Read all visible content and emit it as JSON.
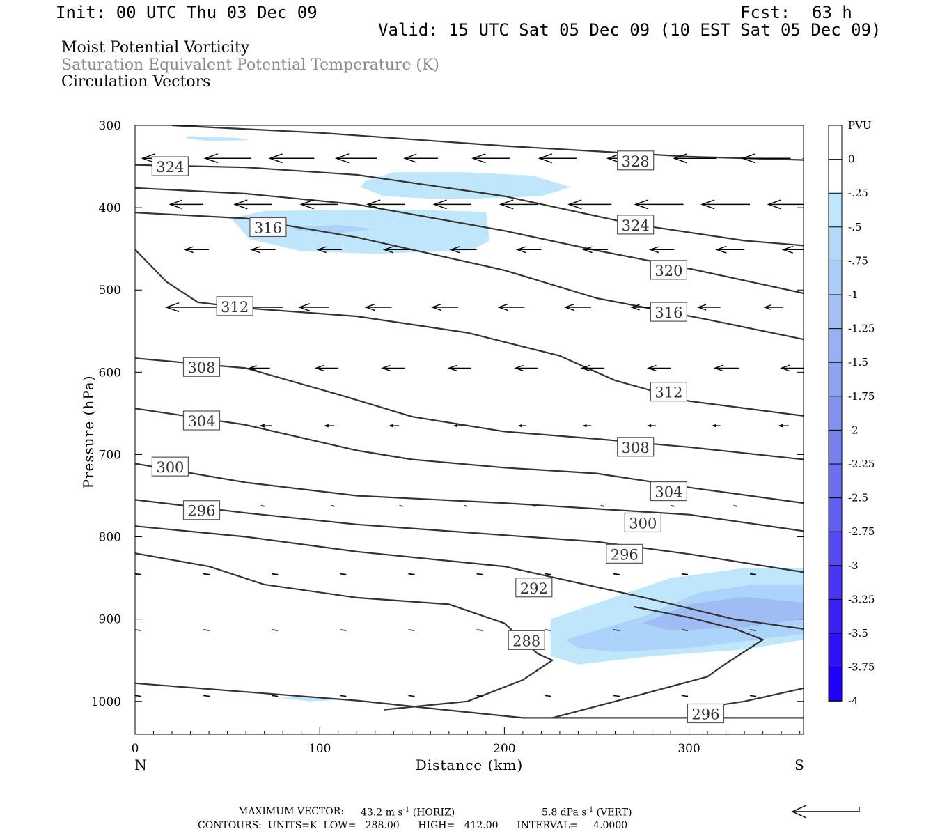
{
  "header": {
    "init": "Init: 00 UTC Thu 03 Dec 09",
    "fcst_label": "Fcst:",
    "fcst_value": "63 h",
    "valid": "Valid: 15 UTC Sat 05 Dec 09 (10 EST Sat 05 Dec 09)"
  },
  "fields": {
    "line1": "Moist Potential Vorticity",
    "line2": "Saturation Equivalent Potential Temperature (K)",
    "line3": "Circulation Vectors"
  },
  "footer": {
    "max_vector_label": "MAXIMUM VECTOR:",
    "max_vector_horiz": "43.2 m s",
    "horiz_sup": "-1",
    "horiz_tag": "(HORIZ)",
    "max_vector_vert": "5.8 dPa s",
    "vert_sup": "-1",
    "vert_tag": "(VERT)",
    "contours": "CONTOURS:  UNITS=K  LOW=   288.00      HIGH=   412.00      INTERVAL=     4.0000"
  },
  "chart_data": {
    "type": "cross-section",
    "xlabel": "Distance (km)",
    "ylabel": "Pressure (hPa)",
    "x_left_label": "N",
    "x_right_label": "S",
    "xlim": [
      0,
      362
    ],
    "ylim": [
      300,
      1040
    ],
    "y_inverted": true,
    "x_ticks": [
      0,
      100,
      200,
      300
    ],
    "y_ticks": [
      300,
      400,
      500,
      600,
      700,
      800,
      900,
      1000
    ],
    "colorbar": {
      "units": "PVU",
      "levels": [
        "0",
        "-.25",
        "-.5",
        "-.75",
        "-1",
        "-1.25",
        "-1.5",
        "-1.75",
        "-2",
        "-2.25",
        "-2.5",
        "-2.75",
        "-3",
        "-3.25",
        "-3.5",
        "-3.75",
        "-4"
      ],
      "colors": [
        "#ffffff",
        "#ffffff",
        "#bfe6fb",
        "#b3d9fa",
        "#aacdf8",
        "#a2c0f6",
        "#98b1f4",
        "#8ea2f2",
        "#8391f0",
        "#7880ee",
        "#6d6fee",
        "#615ef0",
        "#5549f2",
        "#4935f4",
        "#3c21f6",
        "#2e11f8",
        "#1f00fb"
      ]
    },
    "contour_labels": [
      {
        "text": "324",
        "x": 19,
        "p": 350
      },
      {
        "text": "328",
        "x": 271,
        "p": 343
      },
      {
        "text": "316",
        "x": 72,
        "p": 424
      },
      {
        "text": "324",
        "x": 271,
        "p": 421
      },
      {
        "text": "320",
        "x": 289,
        "p": 476
      },
      {
        "text": "312",
        "x": 54,
        "p": 520
      },
      {
        "text": "316",
        "x": 289,
        "p": 527
      },
      {
        "text": "308",
        "x": 36,
        "p": 594
      },
      {
        "text": "312",
        "x": 289,
        "p": 624
      },
      {
        "text": "304",
        "x": 36,
        "p": 659
      },
      {
        "text": "308",
        "x": 271,
        "p": 691
      },
      {
        "text": "300",
        "x": 19,
        "p": 715
      },
      {
        "text": "304",
        "x": 289,
        "p": 745
      },
      {
        "text": "296",
        "x": 36,
        "p": 768
      },
      {
        "text": "300",
        "x": 275,
        "p": 783
      },
      {
        "text": "296",
        "x": 265,
        "p": 821
      },
      {
        "text": "292",
        "x": 216,
        "p": 862
      },
      {
        "text": "288",
        "x": 212,
        "p": 926
      },
      {
        "text": "296",
        "x": 309,
        "p": 1015
      }
    ],
    "contours": [
      {
        "level": 328,
        "points": [
          [
            20,
            300
          ],
          [
            100,
            309
          ],
          [
            200,
            325
          ],
          [
            300,
            338
          ],
          [
            362,
            342
          ]
        ]
      },
      {
        "level": 324,
        "points": [
          [
            0,
            348
          ],
          [
            60,
            351
          ],
          [
            120,
            360
          ],
          [
            200,
            386
          ],
          [
            270,
            420
          ],
          [
            330,
            440
          ],
          [
            362,
            446
          ]
        ]
      },
      {
        "level": 320,
        "points": [
          [
            0,
            376
          ],
          [
            60,
            383
          ],
          [
            120,
            396
          ],
          [
            200,
            428
          ],
          [
            250,
            452
          ],
          [
            300,
            474
          ],
          [
            362,
            504
          ]
        ]
      },
      {
        "level": 316,
        "points": [
          [
            0,
            406
          ],
          [
            60,
            413
          ],
          [
            120,
            436
          ],
          [
            200,
            476
          ],
          [
            250,
            510
          ],
          [
            310,
            536
          ],
          [
            362,
            560
          ]
        ]
      },
      {
        "level": 312,
        "points": [
          [
            0,
            451
          ],
          [
            17,
            490
          ],
          [
            34,
            515
          ],
          [
            60,
            522
          ],
          [
            120,
            532
          ],
          [
            180,
            552
          ],
          [
            230,
            580
          ],
          [
            260,
            610
          ],
          [
            300,
            635
          ],
          [
            362,
            653
          ]
        ]
      },
      {
        "level": 308,
        "points": [
          [
            0,
            583
          ],
          [
            60,
            595
          ],
          [
            110,
            627
          ],
          [
            150,
            654
          ],
          [
            200,
            672
          ],
          [
            250,
            681
          ],
          [
            300,
            691
          ],
          [
            362,
            706
          ]
        ]
      },
      {
        "level": 304,
        "points": [
          [
            0,
            644
          ],
          [
            60,
            664
          ],
          [
            120,
            695
          ],
          [
            150,
            706
          ],
          [
            200,
            716
          ],
          [
            250,
            723
          ],
          [
            300,
            740
          ],
          [
            362,
            759
          ]
        ]
      },
      {
        "level": 300,
        "points": [
          [
            0,
            711
          ],
          [
            60,
            734
          ],
          [
            120,
            750
          ],
          [
            200,
            759
          ],
          [
            250,
            766
          ],
          [
            300,
            773
          ],
          [
            362,
            793
          ]
        ]
      },
      {
        "level": 296,
        "points": [
          [
            0,
            755
          ],
          [
            60,
            771
          ],
          [
            120,
            785
          ],
          [
            200,
            798
          ],
          [
            250,
            806
          ],
          [
            300,
            821
          ],
          [
            362,
            843
          ]
        ]
      },
      {
        "level": 292,
        "points": [
          [
            0,
            787
          ],
          [
            60,
            800
          ],
          [
            120,
            818
          ],
          [
            200,
            836
          ],
          [
            280,
            876
          ],
          [
            324,
            900
          ],
          [
            362,
            912
          ]
        ]
      },
      {
        "level": 288,
        "points": [
          [
            0,
            820
          ],
          [
            40,
            836
          ],
          [
            70,
            858
          ],
          [
            120,
            874
          ],
          [
            170,
            882
          ],
          [
            200,
            905
          ],
          [
            218,
            942
          ],
          [
            226,
            950
          ],
          [
            210,
            974
          ],
          [
            180,
            1000
          ],
          [
            135,
            1010
          ]
        ]
      },
      {
        "level": 292,
        "points": [
          [
            226,
            1020
          ],
          [
            260,
            1000
          ],
          [
            310,
            970
          ],
          [
            320,
            954
          ],
          [
            340,
            925
          ],
          [
            325,
            912
          ],
          [
            300,
            898
          ],
          [
            270,
            885
          ]
        ]
      },
      {
        "level": 296,
        "points": [
          [
            0,
            978
          ],
          [
            80,
            992
          ],
          [
            120,
            999
          ],
          [
            175,
            1012
          ],
          [
            210,
            1020
          ],
          [
            362,
            1020
          ]
        ]
      },
      {
        "level": 296,
        "points": [
          [
            300,
            1010
          ],
          [
            330,
            1000
          ],
          [
            362,
            984
          ]
        ]
      }
    ],
    "pv_shading": [
      {
        "level": "-0.5",
        "points": [
          [
            28,
            313
          ],
          [
            55,
            315
          ],
          [
            62,
            318
          ],
          [
            40,
            319
          ],
          [
            28,
            316
          ]
        ]
      },
      {
        "level": "-0.5",
        "points": [
          [
            125,
            367
          ],
          [
            140,
            357
          ],
          [
            180,
            357
          ],
          [
            215,
            361
          ],
          [
            236,
            375
          ],
          [
            220,
            386
          ],
          [
            170,
            390
          ],
          [
            135,
            386
          ],
          [
            122,
            375
          ]
        ]
      },
      {
        "level": "-0.5",
        "points": [
          [
            52,
            413
          ],
          [
            70,
            404
          ],
          [
            140,
            402
          ],
          [
            190,
            405
          ],
          [
            192,
            440
          ],
          [
            182,
            452
          ],
          [
            130,
            456
          ],
          [
            90,
            453
          ],
          [
            62,
            438
          ]
        ]
      },
      {
        "level": "-0.75",
        "points": [
          [
            85,
            424
          ],
          [
            110,
            421
          ],
          [
            130,
            426
          ],
          [
            110,
            431
          ],
          [
            88,
            428
          ]
        ]
      },
      {
        "level": "-0.5",
        "points": [
          [
            225,
            900
          ],
          [
            260,
            873
          ],
          [
            290,
            850
          ],
          [
            330,
            838
          ],
          [
            362,
            838
          ],
          [
            362,
            925
          ],
          [
            330,
            937
          ],
          [
            280,
            945
          ],
          [
            240,
            955
          ],
          [
            225,
            945
          ]
        ]
      },
      {
        "level": "-0.75",
        "points": [
          [
            233,
            925
          ],
          [
            275,
            897
          ],
          [
            305,
            868
          ],
          [
            335,
            858
          ],
          [
            362,
            858
          ],
          [
            362,
            918
          ],
          [
            300,
            935
          ],
          [
            260,
            940
          ],
          [
            240,
            935
          ]
        ]
      },
      {
        "level": "-1",
        "points": [
          [
            275,
            905
          ],
          [
            300,
            882
          ],
          [
            330,
            873
          ],
          [
            362,
            880
          ],
          [
            362,
            900
          ],
          [
            330,
            910
          ],
          [
            290,
            914
          ]
        ]
      },
      {
        "level": "-0.5",
        "points": [
          [
            78,
            996
          ],
          [
            95,
            994
          ],
          [
            112,
            998
          ],
          [
            95,
            1000
          ]
        ]
      }
    ],
    "max_vector": {
      "u": -43.2,
      "units": "m s-1 (HORIZ)",
      "w": 5.8,
      "w_units": "dPa s-1 (VERT)"
    },
    "vectors": [
      {
        "p": 340,
        "x": [
          4,
          38,
          73,
          109,
          146,
          183,
          219,
          256,
          292,
          329,
          362
        ],
        "len_km": [
          24,
          25,
          24,
          22,
          18,
          20,
          20,
          23,
          23,
          26,
          26
        ]
      },
      {
        "p": 396,
        "x": [
          19,
          54,
          90,
          126,
          162,
          198,
          235,
          271,
          307,
          343
        ],
        "len_km": [
          18,
          20,
          20,
          20,
          20,
          20,
          23,
          26,
          26,
          26
        ]
      },
      {
        "p": 451,
        "x": [
          27,
          63,
          99,
          135,
          171,
          207,
          243,
          279,
          315,
          351
        ],
        "len_km": [
          13,
          13,
          13,
          14,
          14,
          13,
          13,
          13,
          15,
          15
        ]
      },
      {
        "p": 521,
        "x": [
          17,
          53,
          89,
          125,
          161,
          197,
          233,
          269,
          305,
          341
        ],
        "len_km": [
          27,
          27,
          16,
          14,
          14,
          14,
          14,
          12,
          12,
          10
        ]
      },
      {
        "p": 595,
        "x": [
          27,
          62,
          98,
          134,
          170,
          206,
          242,
          278,
          314,
          350
        ],
        "len_km": [
          10,
          11,
          12,
          12,
          12,
          12,
          12,
          12,
          13,
          13
        ]
      },
      {
        "p": 665,
        "x": [
          33,
          68,
          103,
          138,
          173,
          208,
          243,
          278,
          313,
          349
        ],
        "len_km": [
          6,
          6,
          5,
          5,
          4,
          4,
          4,
          4,
          4,
          5
        ]
      },
      {
        "p": 763,
        "x": [
          35,
          70,
          108,
          145,
          180,
          217,
          254,
          292,
          326
        ]
      },
      {
        "p": 845,
        "x": [
          0,
          37,
          74,
          111,
          148,
          185,
          222,
          259,
          296,
          333
        ]
      },
      {
        "p": 913,
        "x": [
          0,
          37,
          74,
          111,
          148,
          185,
          222,
          259,
          296,
          333
        ]
      },
      {
        "p": 993,
        "x": [
          0,
          37,
          74,
          111,
          148,
          185,
          222,
          259,
          296,
          333
        ]
      }
    ]
  }
}
